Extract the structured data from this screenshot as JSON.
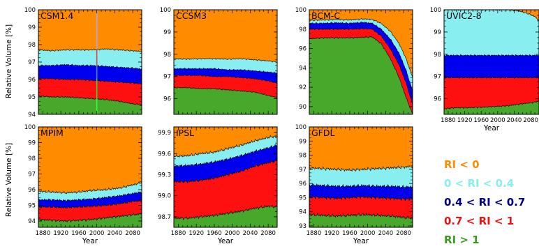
{
  "ylabel": "Relative Volume [%]",
  "xlabel": "Year",
  "colors": {
    "c0": "#ff8c00",
    "c1": "#88eef0",
    "c2": "#0000ee",
    "c3": "#ff1010",
    "c4": "#48a82c",
    "legend_c2": "#000080",
    "legend_c3": "#ee1111",
    "legend_c4": "#3a9a20"
  },
  "legend": [
    {
      "label": "RI < 0",
      "color_key": "c0"
    },
    {
      "label": "0 < RI < 0.4",
      "color_key": "c1"
    },
    {
      "label": "0.4 < RI < 0.7",
      "color_key": "legend_c2"
    },
    {
      "label": "0.7 < RI < 1",
      "color_key": "legend_c3"
    },
    {
      "label": "RI > 1",
      "color_key": "legend_c4"
    }
  ],
  "chart_data": [
    {
      "type": "area",
      "title": "CSM1.4",
      "xlim": [
        1870,
        2100
      ],
      "ylim": [
        94,
        100
      ],
      "xticks": [],
      "yticks": [
        94,
        95,
        96,
        97,
        98,
        99,
        100
      ],
      "ytick_labels": [
        "94",
        "95",
        "96",
        "97",
        "98",
        "99",
        "100"
      ],
      "ylabel": "Relative Volume [%]",
      "xlabel": "",
      "annotation": "vertical line at 2000",
      "x": [
        1870,
        1900,
        1930,
        1960,
        1990,
        2020,
        2050,
        2080,
        2100
      ],
      "boundaries": {
        "b1": [
          95.05,
          95.0,
          95.0,
          94.95,
          94.9,
          94.85,
          94.75,
          94.6,
          94.55
        ],
        "b2": [
          96.05,
          96.05,
          96.0,
          96.0,
          95.95,
          95.9,
          95.85,
          95.8,
          95.75
        ],
        "b3": [
          96.8,
          96.8,
          96.85,
          96.8,
          96.8,
          96.75,
          96.7,
          96.65,
          96.6
        ],
        "b4": [
          97.7,
          97.65,
          97.7,
          97.7,
          97.7,
          97.75,
          97.7,
          97.65,
          97.6
        ]
      }
    },
    {
      "type": "area",
      "title": "CCSM3",
      "xlim": [
        1870,
        2100
      ],
      "ylim": [
        95.3,
        100
      ],
      "xticks": [],
      "yticks": [
        96,
        97,
        98,
        99,
        100
      ],
      "ytick_labels": [
        "96",
        "97",
        "98",
        "99",
        "100"
      ],
      "x": [
        1870,
        1900,
        1930,
        1960,
        1990,
        2020,
        2050,
        2080,
        2100
      ],
      "boundaries": {
        "b1": [
          96.5,
          96.5,
          96.45,
          96.45,
          96.4,
          96.35,
          96.3,
          96.15,
          96.05
        ],
        "b2": [
          97.05,
          97.05,
          97.05,
          97.0,
          97.0,
          96.95,
          96.9,
          96.8,
          96.7
        ],
        "b3": [
          97.35,
          97.35,
          97.35,
          97.35,
          97.3,
          97.3,
          97.25,
          97.2,
          97.15
        ],
        "b4": [
          97.8,
          97.78,
          97.8,
          97.8,
          97.78,
          97.8,
          97.75,
          97.7,
          97.65
        ]
      }
    },
    {
      "type": "area",
      "title": "BCM-C",
      "xlim": [
        1870,
        2100
      ],
      "ylim": [
        89.2,
        100
      ],
      "xticks": [],
      "yticks": [
        90,
        92,
        94,
        96,
        98,
        100
      ],
      "ytick_labels": [
        "90",
        "92",
        "94",
        "96",
        "98",
        "100"
      ],
      "x": [
        1870,
        1900,
        1930,
        1960,
        1990,
        2010,
        2030,
        2050,
        2070,
        2085,
        2100
      ],
      "boundaries": {
        "b1": [
          97.0,
          97.1,
          97.1,
          97.1,
          97.15,
          97.2,
          96.5,
          95.0,
          93.0,
          91.0,
          89.2
        ],
        "b2": [
          98.0,
          98.0,
          98.0,
          98.0,
          98.05,
          98.0,
          97.3,
          96.0,
          94.3,
          92.5,
          90.2
        ],
        "b3": [
          98.6,
          98.6,
          98.65,
          98.6,
          98.7,
          98.6,
          98.0,
          97.0,
          95.5,
          93.8,
          91.6
        ],
        "b4": [
          98.9,
          98.95,
          99.0,
          98.95,
          99.05,
          99.0,
          98.6,
          97.8,
          96.5,
          95.0,
          93.0
        ]
      }
    },
    {
      "type": "area",
      "title": "UVIC2-8",
      "xlim": [
        1870,
        2100
      ],
      "ylim": [
        95.3,
        100
      ],
      "xticks": [
        1880,
        1920,
        1960,
        2000,
        2040,
        2080
      ],
      "xtick_labels": [
        "1880",
        "1920",
        "1960",
        "2000",
        "2040",
        "2080"
      ],
      "yticks": [
        96,
        97,
        98,
        99,
        100
      ],
      "ytick_labels": [
        "96",
        "97",
        "98",
        "99",
        "100"
      ],
      "xlabel": "Year",
      "x": [
        1870,
        1900,
        1930,
        1960,
        1990,
        2020,
        2050,
        2070,
        2090,
        2100
      ],
      "boundaries": {
        "b1": [
          95.55,
          95.6,
          95.6,
          95.62,
          95.65,
          95.68,
          95.75,
          95.8,
          95.85,
          95.9
        ],
        "b2": [
          96.95,
          96.95,
          96.95,
          96.95,
          96.95,
          96.95,
          96.95,
          96.95,
          96.95,
          96.95
        ],
        "b3": [
          97.95,
          97.95,
          97.95,
          97.95,
          97.95,
          97.95,
          97.95,
          97.95,
          97.95,
          97.95
        ],
        "b4": [
          100.0,
          100.0,
          100.0,
          100.0,
          100.0,
          100.0,
          99.95,
          99.85,
          99.7,
          99.5
        ]
      }
    },
    {
      "type": "area",
      "title": "MPIM",
      "xlim": [
        1870,
        2100
      ],
      "ylim": [
        93.6,
        100
      ],
      "xticks": [
        1880,
        1920,
        1960,
        2000,
        2040,
        2080
      ],
      "xtick_labels": [
        "1880",
        "1920",
        "1960",
        "2000",
        "2040",
        "2080"
      ],
      "yticks": [
        94,
        95,
        96,
        97,
        98,
        99,
        100
      ],
      "ytick_labels": [
        "94",
        "95",
        "96",
        "97",
        "98",
        "99",
        "100"
      ],
      "ylabel": "Relative Volume [%]",
      "xlabel": "Year",
      "x": [
        1870,
        1900,
        1930,
        1960,
        1990,
        2020,
        2050,
        2080,
        2100
      ],
      "boundaries": {
        "b1": [
          94.1,
          94.05,
          94.0,
          94.05,
          94.1,
          94.2,
          94.3,
          94.4,
          94.45
        ],
        "b2": [
          94.9,
          94.9,
          94.85,
          94.9,
          94.95,
          95.0,
          95.1,
          95.25,
          95.3
        ],
        "b3": [
          95.35,
          95.35,
          95.3,
          95.35,
          95.4,
          95.5,
          95.6,
          95.75,
          95.85
        ],
        "b4": [
          95.9,
          95.85,
          95.8,
          95.85,
          95.95,
          96.0,
          96.1,
          96.3,
          96.45
        ]
      }
    },
    {
      "type": "area",
      "title": "IPSL",
      "xlim": [
        1870,
        2100
      ],
      "ylim": [
        98.55,
        99.98
      ],
      "xticks": [
        1880,
        1920,
        1960,
        2000,
        2040,
        2080
      ],
      "xtick_labels": [
        "1880",
        "1920",
        "1960",
        "2000",
        "2040",
        "2080"
      ],
      "yticks": [
        98.7,
        99.0,
        99.3,
        99.6,
        99.9
      ],
      "ytick_labels": [
        "98.7",
        "99.0",
        "99.3",
        "99.6",
        "99.9"
      ],
      "xlabel": "Year",
      "x": [
        1870,
        1900,
        1930,
        1960,
        1990,
        2020,
        2050,
        2080,
        2100
      ],
      "boundaries": {
        "b1": [
          98.68,
          98.68,
          98.7,
          98.72,
          98.75,
          98.78,
          98.82,
          98.85,
          98.84
        ],
        "b2": [
          99.2,
          99.2,
          99.22,
          99.25,
          99.3,
          99.35,
          99.42,
          99.47,
          99.5
        ],
        "b3": [
          99.42,
          99.43,
          99.45,
          99.48,
          99.52,
          99.57,
          99.63,
          99.68,
          99.72
        ],
        "b4": [
          99.56,
          99.57,
          99.6,
          99.62,
          99.67,
          99.72,
          99.78,
          99.83,
          99.85
        ]
      }
    },
    {
      "type": "area",
      "title": "GFDL",
      "xlim": [
        1870,
        2100
      ],
      "ylim": [
        92.9,
        100
      ],
      "xticks": [
        1880,
        1920,
        1960,
        2000,
        2040,
        2080
      ],
      "xtick_labels": [
        "1880",
        "1920",
        "1960",
        "2000",
        "2040",
        "2080"
      ],
      "yticks": [
        93,
        94,
        95,
        96,
        97,
        98,
        99,
        100
      ],
      "ytick_labels": [
        "93",
        "94",
        "95",
        "96",
        "97",
        "98",
        "99",
        "100"
      ],
      "xlabel": "Year",
      "x": [
        1870,
        1900,
        1930,
        1960,
        1990,
        2020,
        2050,
        2080,
        2100
      ],
      "boundaries": {
        "b1": [
          93.8,
          93.75,
          93.7,
          93.75,
          93.8,
          93.75,
          93.7,
          93.6,
          93.55
        ],
        "b2": [
          95.05,
          95.0,
          94.95,
          95.0,
          95.05,
          95.0,
          94.95,
          94.9,
          94.9
        ],
        "b3": [
          95.9,
          95.85,
          95.8,
          95.8,
          95.85,
          95.8,
          95.8,
          95.75,
          95.75
        ],
        "b4": [
          97.1,
          97.05,
          97.0,
          96.95,
          97.0,
          97.05,
          97.1,
          97.15,
          97.2
        ]
      }
    }
  ]
}
